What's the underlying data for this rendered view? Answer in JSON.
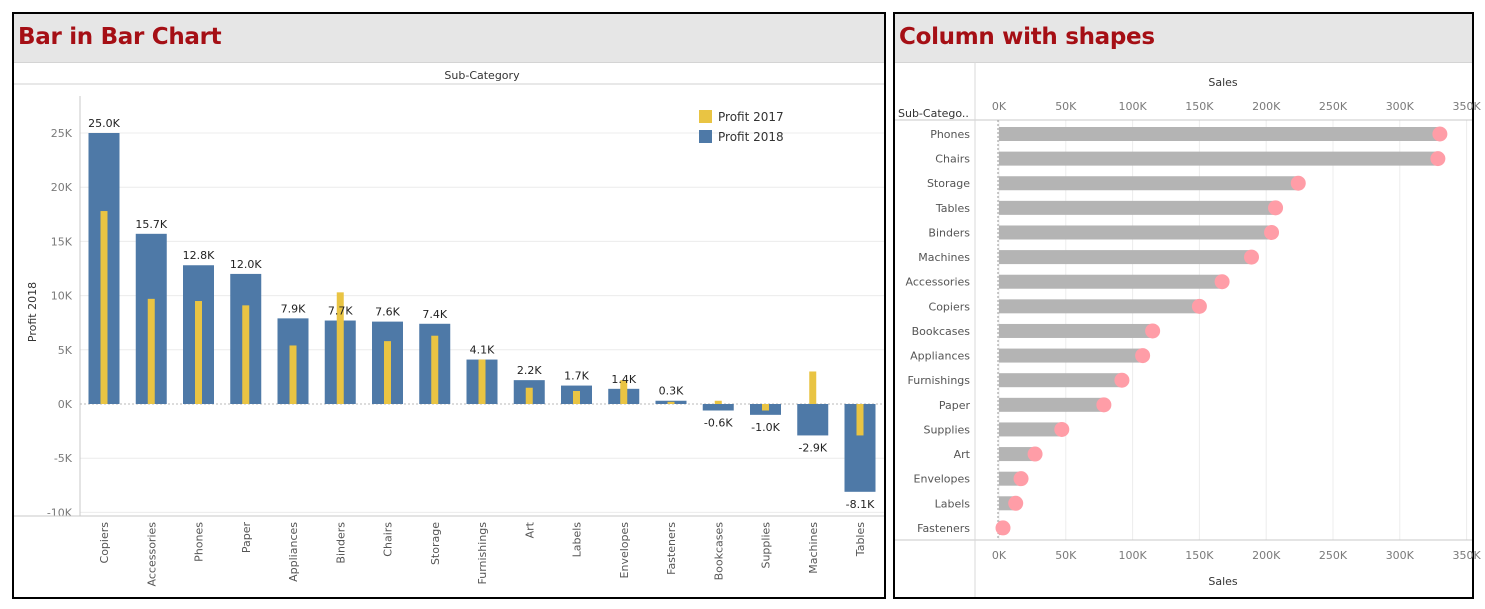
{
  "left_panel": {
    "title": "Bar in Bar Chart",
    "header_label": "Sub-Category",
    "y_axis_label": "Profit 2018"
  },
  "right_panel": {
    "title": "Column with shapes",
    "row_header": "Sub-Catego..",
    "top_axis_label": "Sales",
    "bottom_axis_label": "Sales"
  },
  "chart_data": [
    {
      "type": "bar",
      "title": "Bar in Bar Chart",
      "xlabel": "Sub-Category",
      "ylabel": "Profit 2018",
      "ylim": [
        -11000,
        27000
      ],
      "yticks": [
        "25K",
        "20K",
        "15K",
        "10K",
        "5K",
        "0K",
        "-5K",
        "-10K"
      ],
      "ytick_values": [
        25000,
        20000,
        15000,
        10000,
        5000,
        0,
        -5000,
        -10000
      ],
      "legend_position": "top-right",
      "grid": true,
      "categories": [
        "Copiers",
        "Accessories",
        "Phones",
        "Paper",
        "Appliances",
        "Binders",
        "Chairs",
        "Storage",
        "Furnishings",
        "Art",
        "Labels",
        "Envelopes",
        "Fasteners",
        "Bookcases",
        "Supplies",
        "Machines",
        "Tables"
      ],
      "series": [
        {
          "name": "Profit 2017",
          "color": "#e9c443",
          "values": [
            17800,
            9700,
            9500,
            9100,
            5400,
            10300,
            5800,
            6300,
            4100,
            1500,
            1200,
            2200,
            200,
            300,
            -600,
            3000,
            -2900
          ]
        },
        {
          "name": "Profit 2018",
          "color": "#4e79a7",
          "values": [
            25000,
            15700,
            12800,
            12000,
            7900,
            7700,
            7600,
            7400,
            4100,
            2200,
            1700,
            1400,
            300,
            -600,
            -1000,
            -2900,
            -8100
          ]
        }
      ],
      "data_labels": [
        "25.0K",
        "15.7K",
        "12.8K",
        "12.0K",
        "7.9K",
        "7.7K",
        "7.6K",
        "7.4K",
        "4.1K",
        "2.2K",
        "1.7K",
        "1.4K",
        "0.3K",
        "-0.6K",
        "-1.0K",
        "-2.9K",
        "-8.1K"
      ]
    },
    {
      "type": "bar",
      "orientation": "horizontal",
      "title": "Column with shapes",
      "xlabel": "Sales",
      "ylabel": "Sub-Category",
      "xlim": [
        0,
        355000
      ],
      "xticks": [
        "0K",
        "50K",
        "100K",
        "150K",
        "200K",
        "250K",
        "300K",
        "350K"
      ],
      "xtick_values": [
        0,
        50000,
        100000,
        150000,
        200000,
        250000,
        300000,
        350000
      ],
      "grid": true,
      "bar_color": "#b4b4b4",
      "marker_color": "#ff9da7",
      "categories": [
        "Phones",
        "Chairs",
        "Storage",
        "Tables",
        "Binders",
        "Machines",
        "Accessories",
        "Copiers",
        "Bookcases",
        "Appliances",
        "Furnishings",
        "Paper",
        "Supplies",
        "Art",
        "Envelopes",
        "Labels",
        "Fasteners"
      ],
      "values": [
        330000,
        328500,
        224000,
        207000,
        204000,
        189000,
        167000,
        150000,
        115000,
        107500,
        92000,
        78500,
        47000,
        27000,
        16500,
        12500,
        3000
      ]
    }
  ]
}
